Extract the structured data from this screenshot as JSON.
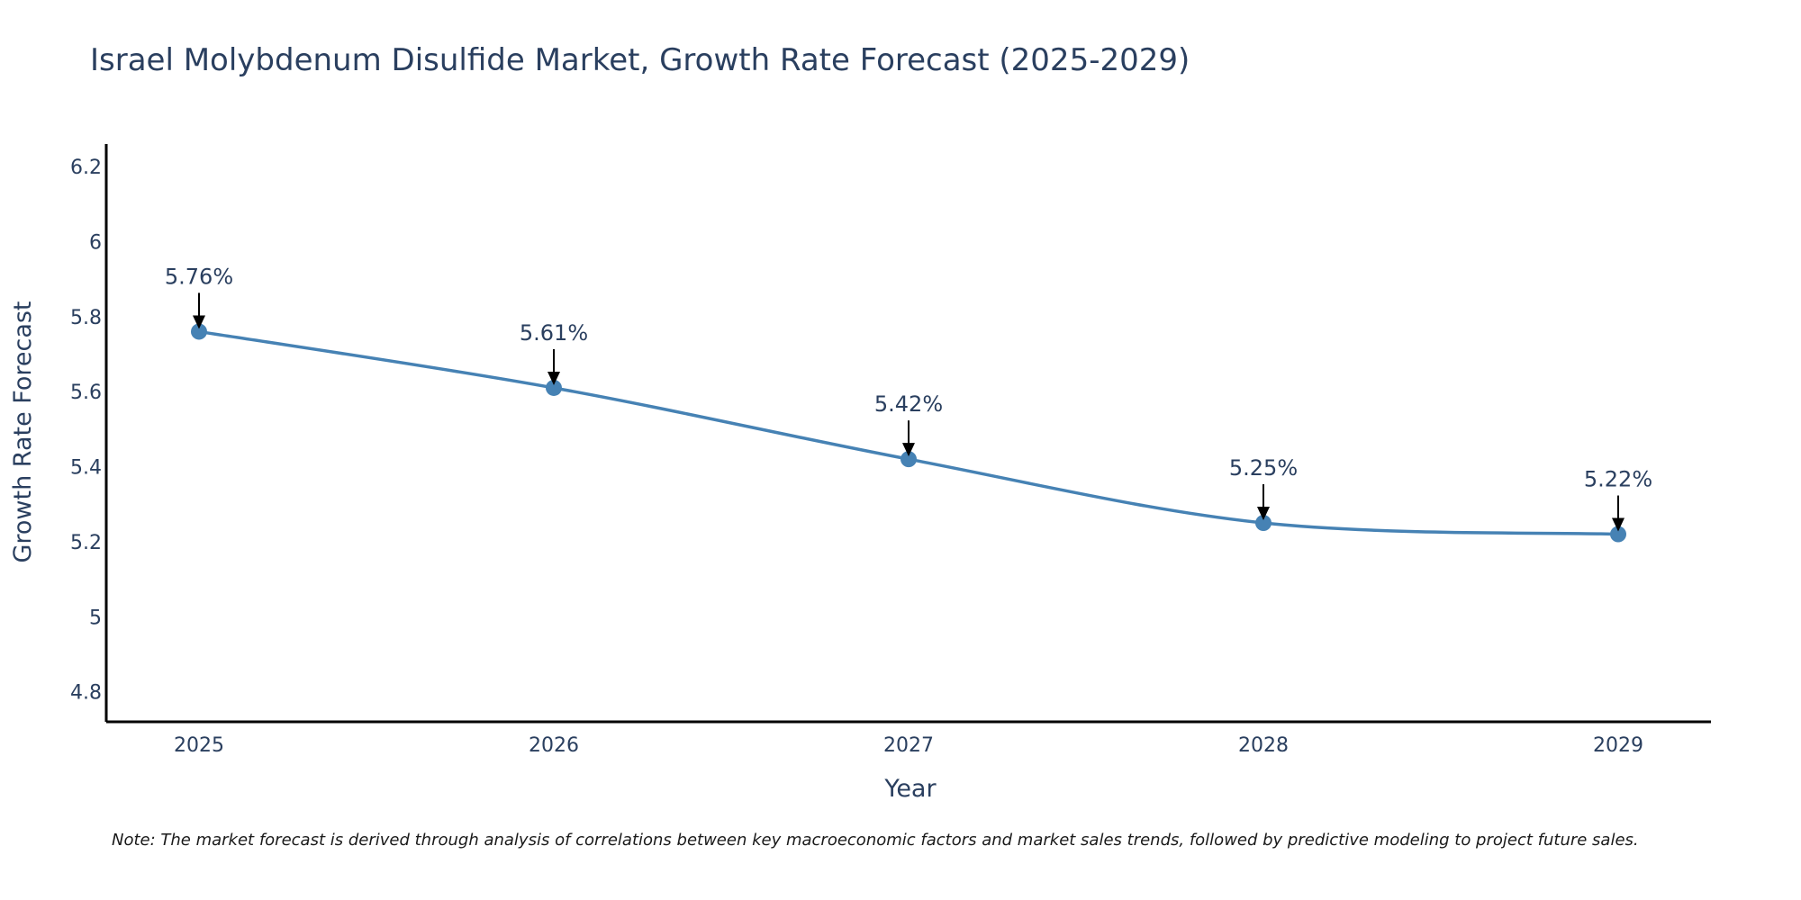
{
  "chart_data": {
    "type": "line",
    "title": "Israel Molybdenum Disulfide Market, Growth Rate Forecast (2025-2029)",
    "xlabel": "Year",
    "ylabel": "Growth Rate Forecast",
    "categories": [
      "2025",
      "2026",
      "2027",
      "2028",
      "2029"
    ],
    "series": [
      {
        "name": "Growth Rate Forecast",
        "values": [
          5.76,
          5.61,
          5.42,
          5.25,
          5.22
        ],
        "data_labels": [
          "5.76%",
          "5.61%",
          "5.42%",
          "5.25%",
          "5.22%"
        ]
      }
    ],
    "ylim": [
      4.72,
      6.26
    ],
    "yticks": [
      4.8,
      5,
      5.2,
      5.4,
      5.6,
      5.8,
      6,
      6.2
    ],
    "ytick_labels": [
      "4.8",
      "5",
      "5.2",
      "5.4",
      "5.6",
      "5.8",
      "6",
      "6.2"
    ],
    "grid": false,
    "line_shape": "spline",
    "note": "Note: The market forecast is derived through analysis of correlations between key macroeconomic factors and market sales trends, followed by predictive modeling to project future sales.",
    "colors": {
      "line": "#4682b4",
      "marker": "#4682b4",
      "arrow": "#000000",
      "axis": "#000000",
      "text": "#2a3f5f"
    }
  }
}
